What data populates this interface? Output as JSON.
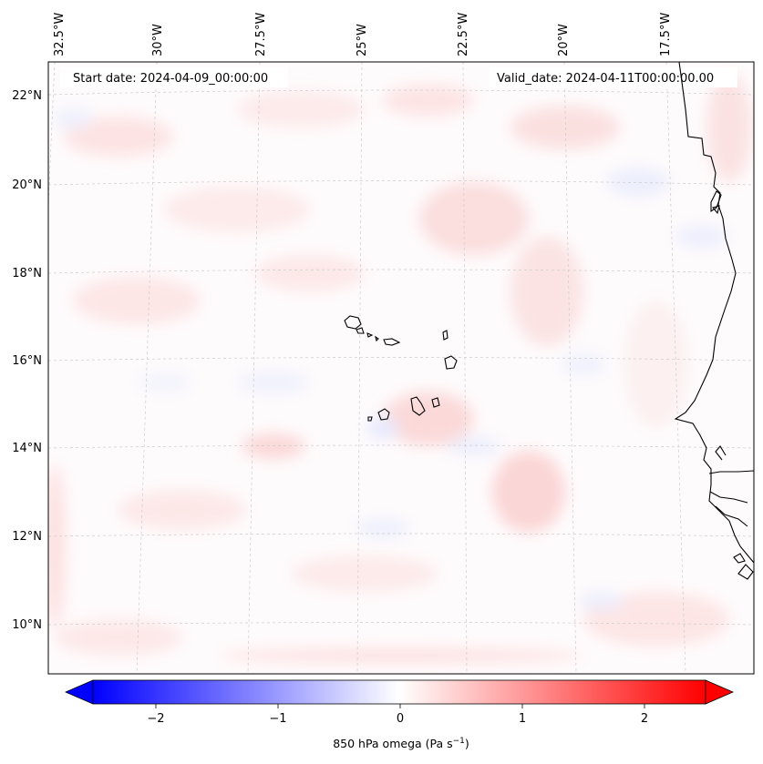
{
  "map": {
    "annotations": {
      "start_date": "Start date: 2024-04-09_00:00:00",
      "valid_date": "Valid_date: 2024-04-11T00:00:00.00"
    },
    "lon_labels": [
      "32.5°W",
      "30°W",
      "27.5°W",
      "25°W",
      "22.5°W",
      "20°W",
      "17.5°W"
    ],
    "lat_labels": [
      "22°N",
      "20°N",
      "18°N",
      "16°N",
      "14°N",
      "12°N",
      "10°N"
    ],
    "colorbar": {
      "ticks": [
        "−2",
        "−1",
        "0",
        "1",
        "2"
      ],
      "label_main": "850 hPa omega (Pa s",
      "label_sup": "−1",
      "label_end": ")",
      "colors": {
        "low": "#0000ff",
        "mid": "#ffffff",
        "high": "#ff0000"
      }
    },
    "coastline_color": "#000000",
    "grid_color": "#c8c8c8"
  }
}
